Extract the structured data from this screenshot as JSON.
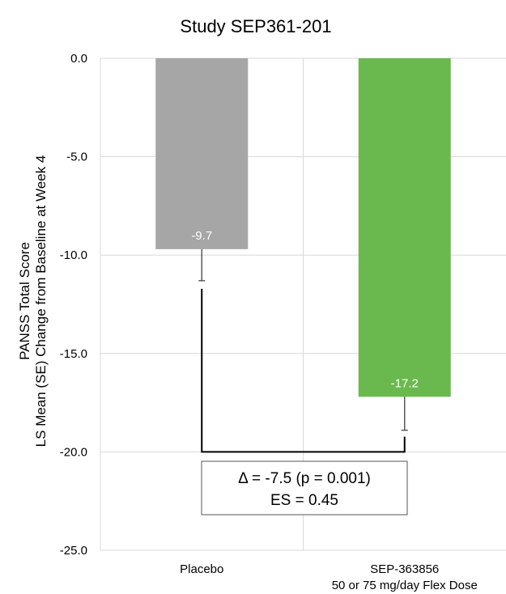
{
  "chart_data": {
    "type": "bar",
    "title": "Study SEP361-201",
    "ylabel_lines": [
      "PANSS Total Score",
      "LS Mean (SE) Change from Baseline at Week 4"
    ],
    "categories": [
      [
        "Placebo"
      ],
      [
        "SEP-363856",
        "50 or 75 mg/day Flex Dose"
      ]
    ],
    "values": [
      -9.7,
      -17.2
    ],
    "se": [
      1.6,
      1.7
    ],
    "data_labels": [
      "-9.7",
      "-17.2"
    ],
    "yticks": [
      "0.0",
      "-5.0",
      "-10.0",
      "-15.0",
      "-20.0",
      "-25.0"
    ],
    "ylim": [
      -25,
      0
    ],
    "bracket_level": -20,
    "colors": [
      "#a6a6a6",
      "#6ab94e"
    ],
    "grid": true,
    "annotation": {
      "line1": "Δ = -7.5 (p = 0.001)",
      "line2": "ES = 0.45"
    }
  }
}
